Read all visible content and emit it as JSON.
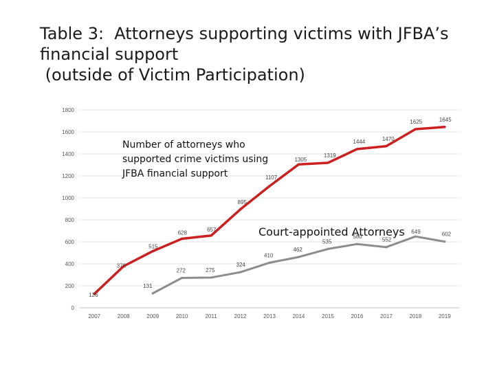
{
  "slide": {
    "title_lines": [
      "Table 3:  Attorneys supporting victims with JFBA’s",
      "financial support",
      " (outside of Victim Participation)"
    ]
  },
  "chart_data": {
    "type": "line",
    "categories": [
      "2007",
      "2008",
      "2009",
      "2010",
      "2011",
      "2012",
      "2013",
      "2014",
      "2015",
      "2016",
      "2017",
      "2018",
      "2019"
    ],
    "y_ticks": [
      0,
      200,
      400,
      600,
      800,
      1000,
      1200,
      1400,
      1600,
      1800
    ],
    "y_tick_labels": [
      "0",
      "200",
      "400",
      "600",
      "800",
      "1000",
      "1200",
      "1400",
      "1600",
      "1800"
    ],
    "ylim": [
      0,
      1800
    ],
    "grid": true,
    "legend": "none",
    "series": [
      {
        "color": "#cc1f1f",
        "values": [
          126,
          378,
          515,
          628,
          657,
          895,
          1107,
          1305,
          1319,
          1444,
          1470,
          1625,
          1645
        ],
        "labels": [
          "126",
          "378",
          "515",
          "628",
          "657",
          "895",
          "1107",
          "1305",
          "1319",
          "1444",
          "1470",
          "1625",
          "1645"
        ]
      },
      {
        "color": "#8c8c8c",
        "values": [
          null,
          null,
          131,
          272,
          275,
          324,
          410,
          462,
          535,
          580,
          552,
          649,
          602
        ],
        "labels": [
          "",
          "",
          "131",
          "272",
          "275",
          "324",
          "410",
          "462",
          "535",
          "580",
          "552",
          "649",
          "602"
        ]
      }
    ],
    "annotations": {
      "red_series_note": [
        "Number of attorneys who",
        "supported crime victims using",
        "JFBA financial support"
      ],
      "grey_series_note": "Court-appointed Attorneys"
    }
  }
}
